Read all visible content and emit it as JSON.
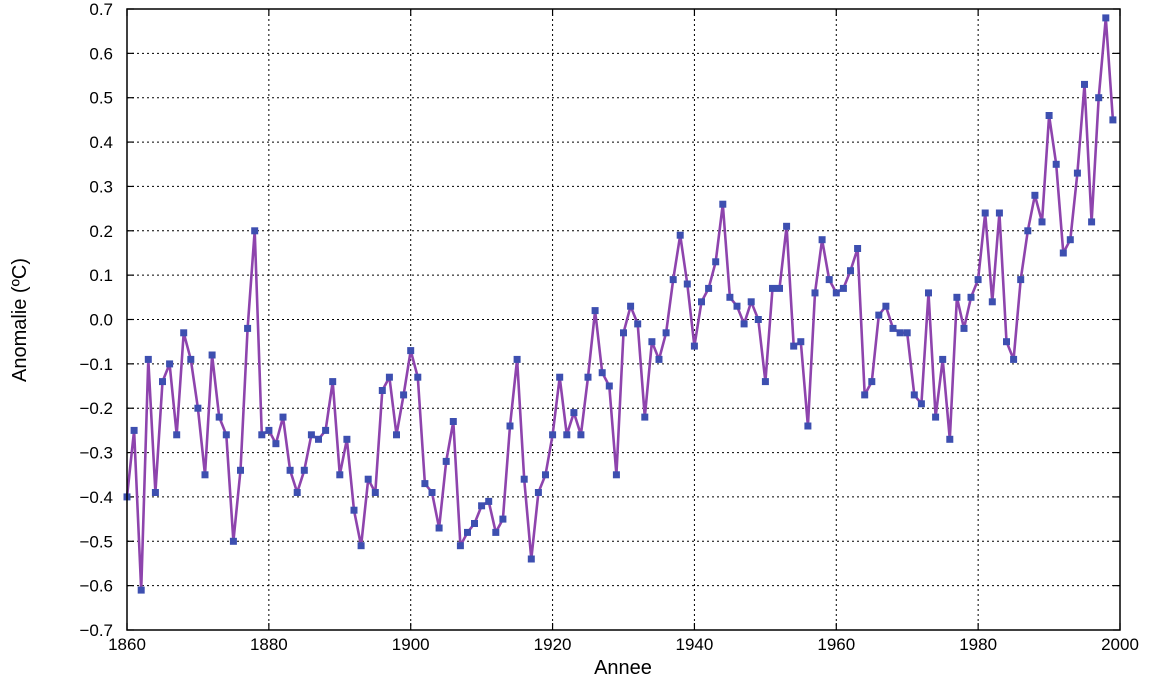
{
  "chart_data": {
    "type": "line",
    "title": "",
    "xlabel": "Annee",
    "ylabel": "Anomalie (ºC)",
    "xlim": [
      1860,
      2000
    ],
    "ylim": [
      -0.7,
      0.7
    ],
    "grid": true,
    "x_ticks": [
      "1860",
      "1880",
      "1900",
      "1920",
      "1940",
      "1960",
      "1980",
      "2000"
    ],
    "y_ticks": [
      "0.7",
      "0.6",
      "0.5",
      "0.4",
      "0.3",
      "0.2",
      "0.1",
      "0.0",
      "-0.1",
      "-0.2",
      "-0.3",
      "-0.4",
      "-0.5",
      "-0.6",
      "-0.7"
    ],
    "line_color": "#8e44ad",
    "marker_color": "#3d4fb0",
    "x": [
      1860,
      1861,
      1862,
      1863,
      1864,
      1865,
      1866,
      1867,
      1868,
      1869,
      1870,
      1871,
      1872,
      1873,
      1874,
      1875,
      1876,
      1877,
      1878,
      1879,
      1880,
      1881,
      1882,
      1883,
      1884,
      1885,
      1886,
      1887,
      1888,
      1889,
      1890,
      1891,
      1892,
      1893,
      1894,
      1895,
      1896,
      1897,
      1898,
      1899,
      1900,
      1901,
      1902,
      1903,
      1904,
      1905,
      1906,
      1907,
      1908,
      1909,
      1910,
      1911,
      1912,
      1913,
      1914,
      1915,
      1916,
      1917,
      1918,
      1919,
      1920,
      1921,
      1922,
      1923,
      1924,
      1925,
      1926,
      1927,
      1928,
      1929,
      1930,
      1931,
      1932,
      1933,
      1934,
      1935,
      1936,
      1937,
      1938,
      1939,
      1940,
      1941,
      1942,
      1943,
      1944,
      1945,
      1946,
      1947,
      1948,
      1949,
      1950,
      1951,
      1952,
      1953,
      1954,
      1955,
      1956,
      1957,
      1958,
      1959,
      1960,
      1961,
      1962,
      1963,
      1964,
      1965,
      1966,
      1967,
      1968,
      1969,
      1970,
      1971,
      1972,
      1973,
      1974,
      1975,
      1976,
      1977,
      1978,
      1979,
      1980,
      1981,
      1982,
      1983,
      1984,
      1985,
      1986,
      1987,
      1988,
      1989,
      1990,
      1991,
      1992,
      1993,
      1994,
      1995,
      1996,
      1997,
      1998,
      1999
    ],
    "series": [
      {
        "values": [
          -0.4,
          -0.25,
          -0.61,
          -0.09,
          -0.39,
          -0.14,
          -0.1,
          -0.26,
          -0.03,
          -0.09,
          -0.2,
          -0.35,
          -0.08,
          -0.22,
          -0.26,
          -0.5,
          -0.34,
          -0.02,
          0.2,
          -0.26,
          -0.25,
          -0.28,
          -0.22,
          -0.34,
          -0.39,
          -0.34,
          -0.26,
          -0.27,
          -0.25,
          -0.14,
          -0.35,
          -0.27,
          -0.43,
          -0.51,
          -0.36,
          -0.39,
          -0.16,
          -0.13,
          -0.26,
          -0.17,
          -0.07,
          -0.13,
          -0.37,
          -0.39,
          -0.47,
          -0.32,
          -0.23,
          -0.51,
          -0.48,
          -0.46,
          -0.42,
          -0.41,
          -0.48,
          -0.45,
          -0.24,
          -0.09,
          -0.36,
          -0.54,
          -0.39,
          -0.35,
          -0.26,
          -0.13,
          -0.26,
          -0.21,
          -0.26,
          -0.13,
          0.02,
          -0.12,
          -0.15,
          -0.35,
          -0.03,
          0.03,
          -0.01,
          -0.22,
          -0.05,
          -0.09,
          -0.03,
          0.09,
          0.19,
          0.08,
          -0.06,
          0.04,
          0.07,
          0.13,
          0.26,
          0.05,
          0.03,
          -0.01,
          0.04,
          0.0,
          -0.14,
          0.07,
          0.07,
          0.21,
          -0.06,
          -0.05,
          -0.24,
          0.06,
          0.18,
          0.09,
          0.06,
          0.07,
          0.11,
          0.16,
          -0.17,
          -0.14,
          0.01,
          0.03,
          -0.02,
          -0.03,
          -0.03,
          -0.17,
          -0.19,
          0.06,
          -0.22,
          -0.09,
          -0.27,
          0.05,
          -0.02,
          0.05,
          0.09,
          0.24,
          0.04,
          0.24,
          -0.05,
          -0.09,
          0.09,
          0.2,
          0.28,
          0.22,
          0.46,
          0.35,
          0.15,
          0.18,
          0.33,
          0.53,
          0.22,
          0.5,
          0.68,
          0.45
        ]
      }
    ]
  }
}
